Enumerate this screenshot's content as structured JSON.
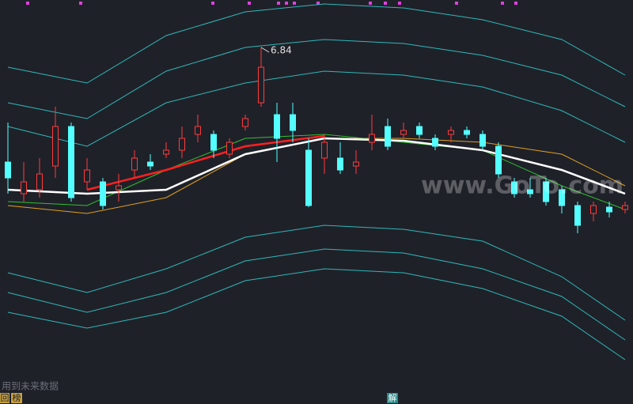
{
  "chart_data": [
    {
      "type": "candlestick",
      "up_color": "#ff3c3c",
      "down_color": "#54ffff",
      "xlim": [
        -0.5,
        39.5
      ],
      "ylim": [
        2.54,
        7.44
      ],
      "x": [
        0,
        1,
        2,
        3,
        4,
        5,
        6,
        7,
        8,
        9,
        10,
        11,
        12,
        13,
        14,
        15,
        16,
        17,
        18,
        19,
        20,
        21,
        22,
        23,
        24,
        25,
        26,
        27,
        28,
        29,
        30,
        31,
        32,
        33,
        34,
        35,
        36,
        37,
        38,
        39
      ],
      "open": [
        5.39,
        4.99,
        5.04,
        5.34,
        5.84,
        5.14,
        5.14,
        5.04,
        5.29,
        5.39,
        5.49,
        5.54,
        5.74,
        5.74,
        5.49,
        5.84,
        6.14,
        5.99,
        5.99,
        5.54,
        5.44,
        5.44,
        5.34,
        5.64,
        5.84,
        5.74,
        5.84,
        5.69,
        5.74,
        5.79,
        5.74,
        5.59,
        5.14,
        5.04,
        5.14,
        5.04,
        4.84,
        4.74,
        4.82,
        4.79
      ],
      "close": [
        5.19,
        5.14,
        5.24,
        5.84,
        4.94,
        5.29,
        4.84,
        5.09,
        5.44,
        5.34,
        5.54,
        5.69,
        5.84,
        5.54,
        5.64,
        5.94,
        6.59,
        5.69,
        5.79,
        4.84,
        5.64,
        5.29,
        5.39,
        5.74,
        5.59,
        5.79,
        5.74,
        5.59,
        5.79,
        5.74,
        5.59,
        5.24,
        4.99,
        4.99,
        4.89,
        4.84,
        4.59,
        4.84,
        4.76,
        4.84
      ],
      "high": [
        5.89,
        5.39,
        5.44,
        6.09,
        5.89,
        5.44,
        5.19,
        5.24,
        5.54,
        5.49,
        5.64,
        5.84,
        5.99,
        5.79,
        5.69,
        5.99,
        6.84,
        6.14,
        6.14,
        5.69,
        5.74,
        5.64,
        5.54,
        5.99,
        5.94,
        5.89,
        5.89,
        5.74,
        5.84,
        5.84,
        5.79,
        5.64,
        5.19,
        5.19,
        5.19,
        5.09,
        4.89,
        4.89,
        4.89,
        4.89
      ],
      "low": [
        4.99,
        4.89,
        4.94,
        5.19,
        4.89,
        5.04,
        4.79,
        4.89,
        5.19,
        5.29,
        5.44,
        5.44,
        5.64,
        5.44,
        5.44,
        5.79,
        6.09,
        5.39,
        5.64,
        4.82,
        5.24,
        5.24,
        5.24,
        5.54,
        5.54,
        5.69,
        5.69,
        5.54,
        5.64,
        5.69,
        5.54,
        5.19,
        4.94,
        4.94,
        4.84,
        4.74,
        4.49,
        4.64,
        4.69,
        4.74
      ],
      "max_label": "6.84"
    },
    {
      "type": "line",
      "xlim": [
        -0.5,
        39.5
      ],
      "ylim": [
        2.54,
        7.44
      ],
      "x": [
        0,
        5,
        10,
        15,
        20,
        25,
        30,
        35,
        39
      ],
      "series": [
        {
          "color": "#2fb8b8",
          "values": [
            6.59,
            6.39,
            6.99,
            7.29,
            7.39,
            7.34,
            7.19,
            6.94,
            6.49
          ]
        },
        {
          "color": "#2fb8b8",
          "values": [
            6.14,
            5.94,
            6.54,
            6.84,
            6.94,
            6.89,
            6.74,
            6.49,
            6.09
          ]
        },
        {
          "color": "#2fb8b8",
          "values": [
            5.84,
            5.59,
            6.14,
            6.39,
            6.54,
            6.49,
            6.34,
            6.04,
            5.64
          ]
        },
        {
          "color": "#2fb8b8",
          "values": [
            3.99,
            3.74,
            4.04,
            4.44,
            4.59,
            4.54,
            4.39,
            3.94,
            3.39
          ]
        },
        {
          "color": "#2fb8b8",
          "values": [
            3.74,
            3.49,
            3.74,
            4.14,
            4.29,
            4.24,
            4.04,
            3.69,
            3.14
          ]
        },
        {
          "color": "#2fb8b8",
          "values": [
            3.49,
            3.29,
            3.49,
            3.89,
            4.04,
            3.99,
            3.79,
            3.44,
            2.89
          ]
        },
        {
          "color": "#e0a020",
          "values": [
            4.84,
            4.74,
            4.94,
            5.49,
            5.69,
            5.69,
            5.64,
            5.49,
            5.09
          ]
        },
        {
          "color": "#30c030",
          "values": [
            4.89,
            4.84,
            5.29,
            5.69,
            5.74,
            5.64,
            5.54,
            5.09,
            4.79
          ]
        },
        {
          "color": "#ffffff",
          "values": [
            5.04,
            4.99,
            5.04,
            5.49,
            5.69,
            5.66,
            5.54,
            5.29,
            4.99
          ]
        },
        {
          "color": "#ff2020",
          "values": [
            null,
            5.04,
            5.29,
            5.59,
            5.72,
            null,
            null,
            null,
            null
          ]
        }
      ]
    }
  ],
  "watermark": "www.GoTo.com",
  "footer": {
    "note": "用到未来数据",
    "icon_left": "回",
    "icon_left2": "榜",
    "icon_mid": "解"
  }
}
